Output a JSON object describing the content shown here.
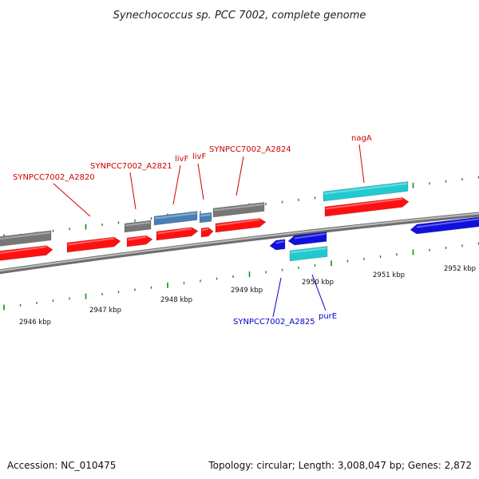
{
  "title": "Synechococcus sp. PCC 7002, complete genome",
  "footer": {
    "accession": "Accession: NC_010475",
    "summary": "Topology: circular; Length: 3,008,047 bp; Genes: 2,872"
  },
  "colors": {
    "cds": "#ff1010",
    "cds_dark": "#b00000",
    "gene_gray": "#777777",
    "gene_steel": "#4a7fb5",
    "gene_cyan": "#20cad0",
    "gene_blue": "#1010dd",
    "tick": "#1a8a1a",
    "backbone": "#888888",
    "label_fwd": "#cc0000",
    "label_rev": "#0000cc"
  },
  "kbp_labels": [
    "2946 kbp",
    "2947 kbp",
    "2948 kbp",
    "2949 kbp",
    "2950 kbp",
    "2951 kbp",
    "2952 kbp"
  ],
  "labels": [
    {
      "text": "SYNPCC7002_A2820",
      "strand": "fwd"
    },
    {
      "text": "SYNPCC7002_A2821",
      "strand": "fwd"
    },
    {
      "text": "livF",
      "strand": "fwd"
    },
    {
      "text": "livF",
      "strand": "fwd"
    },
    {
      "text": "SYNPCC7002_A2824",
      "strand": "fwd"
    },
    {
      "text": "nagA",
      "strand": "fwd"
    },
    {
      "text": "SYNPCC7002_A2825",
      "strand": "rev"
    },
    {
      "text": "purE",
      "strand": "rev"
    }
  ]
}
